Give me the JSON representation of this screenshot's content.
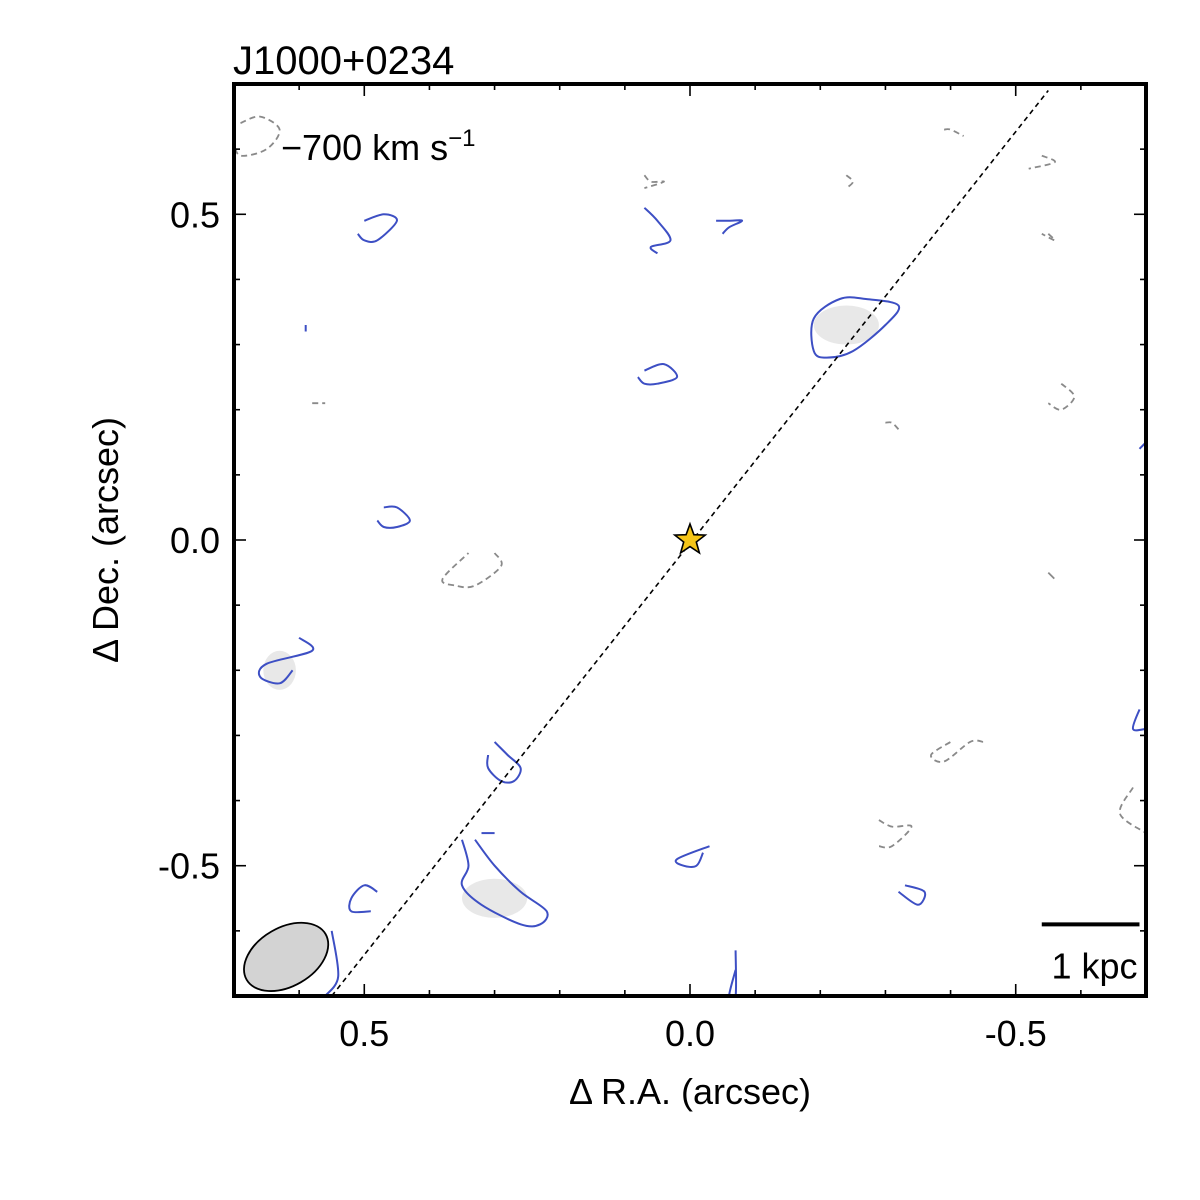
{
  "chart_data": {
    "type": "contour",
    "title": "J1000+0234",
    "annotation": "−700 km s",
    "annotation_superscript": "−1",
    "xlabel": "Δ R.A. (arcsec)",
    "ylabel": "Δ Dec. (arcsec)",
    "xlim": [
      0.7,
      -0.7
    ],
    "ylim": [
      -0.7,
      0.7
    ],
    "x_ticks": [
      0.5,
      0.0,
      -0.5
    ],
    "x_tick_labels": [
      "0.5",
      "0.0",
      "-0.5"
    ],
    "y_ticks": [
      0.5,
      0.0,
      -0.5
    ],
    "y_tick_labels": [
      "0.5",
      "0.0",
      "-0.5"
    ],
    "minor_tick_step": 0.1,
    "grid": false,
    "source_marker": {
      "x": 0.0,
      "y": 0.0,
      "symbol": "star"
    },
    "axis_line": {
      "x1": 0.55,
      "y1": -0.7,
      "x2": -0.55,
      "y2": 0.69
    },
    "beam": {
      "x": 0.62,
      "y": -0.64,
      "major": 0.14,
      "minor": 0.09,
      "pa_deg": 30
    },
    "scale_bar": {
      "label": "1 kpc",
      "x1": -0.54,
      "x2": -0.69,
      "y": -0.59
    },
    "colors": {
      "positive_contour": "#3d4fc4",
      "negative_contour": "#8a8a8a",
      "star_fill": "#f5c518",
      "beam_fill": "#d3d3d3",
      "emission_fill": "#e6e6e6"
    },
    "positive_contours": [
      [
        [
          0.5,
          0.49
        ],
        [
          0.47,
          0.5
        ],
        [
          0.45,
          0.49
        ],
        [
          0.48,
          0.46
        ],
        [
          0.5,
          0.46
        ],
        [
          0.51,
          0.47
        ]
      ],
      [
        [
          0.59,
          0.33
        ],
        [
          0.59,
          0.32
        ]
      ],
      [
        [
          0.07,
          0.51
        ],
        [
          0.05,
          0.49
        ],
        [
          0.03,
          0.46
        ],
        [
          0.06,
          0.45
        ],
        [
          0.05,
          0.44
        ]
      ],
      [
        [
          -0.04,
          0.49
        ],
        [
          -0.06,
          0.49
        ],
        [
          -0.08,
          0.49
        ],
        [
          -0.06,
          0.48
        ],
        [
          -0.05,
          0.47
        ]
      ],
      [
        [
          -0.19,
          0.34
        ],
        [
          -0.23,
          0.37
        ],
        [
          -0.27,
          0.37
        ],
        [
          -0.32,
          0.36
        ],
        [
          -0.3,
          0.33
        ],
        [
          -0.25,
          0.29
        ],
        [
          -0.21,
          0.28
        ],
        [
          -0.19,
          0.29
        ],
        [
          -0.19,
          0.34
        ]
      ],
      [
        [
          0.07,
          0.26
        ],
        [
          0.04,
          0.27
        ],
        [
          0.02,
          0.25
        ],
        [
          0.05,
          0.24
        ],
        [
          0.07,
          0.24
        ],
        [
          0.08,
          0.25
        ]
      ],
      [
        [
          -0.7,
          0.15
        ],
        [
          -0.69,
          0.14
        ]
      ],
      [
        [
          0.47,
          0.05
        ],
        [
          0.45,
          0.05
        ],
        [
          0.43,
          0.03
        ],
        [
          0.45,
          0.02
        ],
        [
          0.47,
          0.02
        ],
        [
          0.48,
          0.03
        ]
      ],
      [
        [
          0.6,
          -0.15
        ],
        [
          0.58,
          -0.17
        ],
        [
          0.65,
          -0.19
        ],
        [
          0.66,
          -0.21
        ],
        [
          0.63,
          -0.22
        ],
        [
          0.61,
          -0.2
        ]
      ],
      [
        [
          -0.69,
          -0.26
        ],
        [
          -0.68,
          -0.29
        ],
        [
          -0.7,
          -0.29
        ]
      ],
      [
        [
          0.3,
          -0.31
        ],
        [
          0.28,
          -0.33
        ],
        [
          0.26,
          -0.35
        ],
        [
          0.27,
          -0.37
        ],
        [
          0.29,
          -0.37
        ],
        [
          0.31,
          -0.35
        ],
        [
          0.31,
          -0.33
        ]
      ],
      [
        [
          0.32,
          -0.45
        ],
        [
          0.31,
          -0.45
        ],
        [
          0.3,
          -0.45
        ]
      ],
      [
        [
          0.35,
          -0.46
        ],
        [
          0.34,
          -0.5
        ],
        [
          0.35,
          -0.53
        ],
        [
          0.32,
          -0.56
        ],
        [
          0.26,
          -0.59
        ],
        [
          0.23,
          -0.59
        ],
        [
          0.22,
          -0.57
        ],
        [
          0.26,
          -0.54
        ],
        [
          0.3,
          -0.5
        ],
        [
          0.33,
          -0.46
        ]
      ],
      [
        [
          -0.02,
          -0.48
        ],
        [
          -0.01,
          -0.5
        ],
        [
          0.01,
          -0.5
        ],
        [
          0.02,
          -0.49
        ],
        [
          -0.03,
          -0.47
        ]
      ],
      [
        [
          -0.32,
          -0.54
        ],
        [
          -0.35,
          -0.56
        ],
        [
          -0.36,
          -0.54
        ],
        [
          -0.33,
          -0.53
        ]
      ],
      [
        [
          0.48,
          -0.54
        ],
        [
          0.5,
          -0.53
        ],
        [
          0.52,
          -0.55
        ],
        [
          0.52,
          -0.57
        ],
        [
          0.49,
          -0.57
        ]
      ],
      [
        [
          0.55,
          -0.6
        ],
        [
          0.54,
          -0.67
        ],
        [
          0.56,
          -0.7
        ]
      ],
      [
        [
          -0.07,
          -0.63
        ],
        [
          -0.07,
          -0.7
        ],
        [
          -0.06,
          -0.7
        ],
        [
          -0.07,
          -0.66
        ]
      ]
    ],
    "negative_contours": [
      [
        [
          0.69,
          0.64
        ],
        [
          0.66,
          0.65
        ],
        [
          0.63,
          0.63
        ],
        [
          0.65,
          0.6
        ],
        [
          0.69,
          0.59
        ],
        [
          0.7,
          0.61
        ]
      ],
      [
        [
          0.07,
          0.56
        ],
        [
          0.06,
          0.55
        ],
        [
          0.04,
          0.55
        ],
        [
          0.07,
          0.54
        ]
      ],
      [
        [
          -0.39,
          0.63
        ],
        [
          -0.4,
          0.63
        ],
        [
          -0.42,
          0.62
        ]
      ],
      [
        [
          -0.24,
          0.56
        ],
        [
          -0.25,
          0.55
        ],
        [
          -0.24,
          0.54
        ]
      ],
      [
        [
          -0.54,
          0.59
        ],
        [
          -0.56,
          0.58
        ],
        [
          -0.52,
          0.57
        ]
      ],
      [
        [
          -0.55,
          0.47
        ],
        [
          -0.56,
          0.46
        ],
        [
          -0.54,
          0.47
        ]
      ],
      [
        [
          0.58,
          0.21
        ],
        [
          0.57,
          0.21
        ],
        [
          0.56,
          0.21
        ]
      ],
      [
        [
          -0.57,
          0.24
        ],
        [
          -0.59,
          0.22
        ],
        [
          -0.57,
          0.2
        ],
        [
          -0.55,
          0.21
        ]
      ],
      [
        [
          -0.3,
          0.18
        ],
        [
          -0.31,
          0.18
        ],
        [
          -0.32,
          0.17
        ]
      ],
      [
        [
          0.3,
          -0.02
        ],
        [
          0.29,
          -0.04
        ],
        [
          0.33,
          -0.07
        ],
        [
          0.36,
          -0.07
        ],
        [
          0.38,
          -0.06
        ],
        [
          0.34,
          -0.02
        ]
      ],
      [
        [
          -0.55,
          -0.05
        ],
        [
          -0.56,
          -0.06
        ],
        [
          -0.55,
          -0.05
        ]
      ],
      [
        [
          -0.45,
          -0.31
        ],
        [
          -0.43,
          -0.31
        ],
        [
          -0.39,
          -0.34
        ],
        [
          -0.37,
          -0.33
        ],
        [
          -0.4,
          -0.31
        ]
      ],
      [
        [
          -0.68,
          -0.38
        ],
        [
          -0.66,
          -0.42
        ],
        [
          -0.7,
          -0.45
        ]
      ],
      [
        [
          -0.29,
          -0.43
        ],
        [
          -0.31,
          -0.44
        ],
        [
          -0.34,
          -0.44
        ],
        [
          -0.31,
          -0.47
        ],
        [
          -0.29,
          -0.47
        ]
      ],
      [
        [
          0.12,
          -0.7
        ],
        [
          0.11,
          -0.7
        ],
        [
          0.1,
          -0.7
        ]
      ]
    ],
    "emission_blobs": [
      {
        "x": -0.24,
        "y": 0.33,
        "rx": 0.05,
        "ry": 0.03
      },
      {
        "x": 0.3,
        "y": -0.55,
        "rx": 0.05,
        "ry": 0.03
      },
      {
        "x": 0.63,
        "y": -0.2,
        "rx": 0.025,
        "ry": 0.03
      }
    ]
  }
}
